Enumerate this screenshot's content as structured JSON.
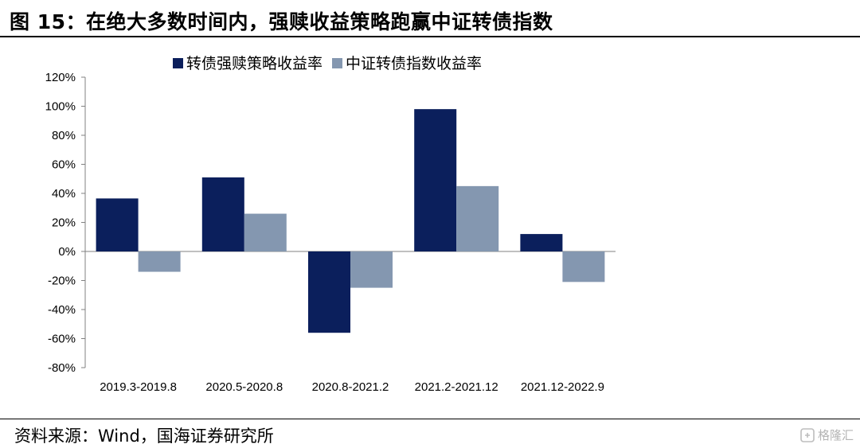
{
  "figure": {
    "title": "图 15：在绝大多数时间内，强赎收益策略跑赢中证转债指数",
    "source": "资料来源：Wind，国海证券研究所",
    "watermark": "格隆汇"
  },
  "colors": {
    "series_1": "#0b1f5c",
    "series_2": "#8497b0",
    "axis": "#808080"
  },
  "chart_data": {
    "type": "bar",
    "categories": [
      "2019.3-2019.8",
      "2020.5-2020.8",
      "2020.8-2021.2",
      "2021.2-2021.12",
      "2021.12-2022.9"
    ],
    "series": [
      {
        "name": "转债强赎策略收益率",
        "values": [
          36.5,
          51,
          -56,
          98,
          12
        ]
      },
      {
        "name": "中证转债指数收益率",
        "values": [
          -14,
          26,
          -25,
          45,
          -21
        ]
      }
    ],
    "ylim": [
      -80,
      120
    ],
    "yticks": [
      120,
      100,
      80,
      60,
      40,
      20,
      0,
      -20,
      -40,
      -60,
      -80
    ],
    "ytick_labels": [
      "120%",
      "100%",
      "80%",
      "60%",
      "40%",
      "20%",
      "0%",
      "-20%",
      "-40%",
      "-60%",
      "-80%"
    ],
    "legend_position": "top",
    "grid": false
  }
}
